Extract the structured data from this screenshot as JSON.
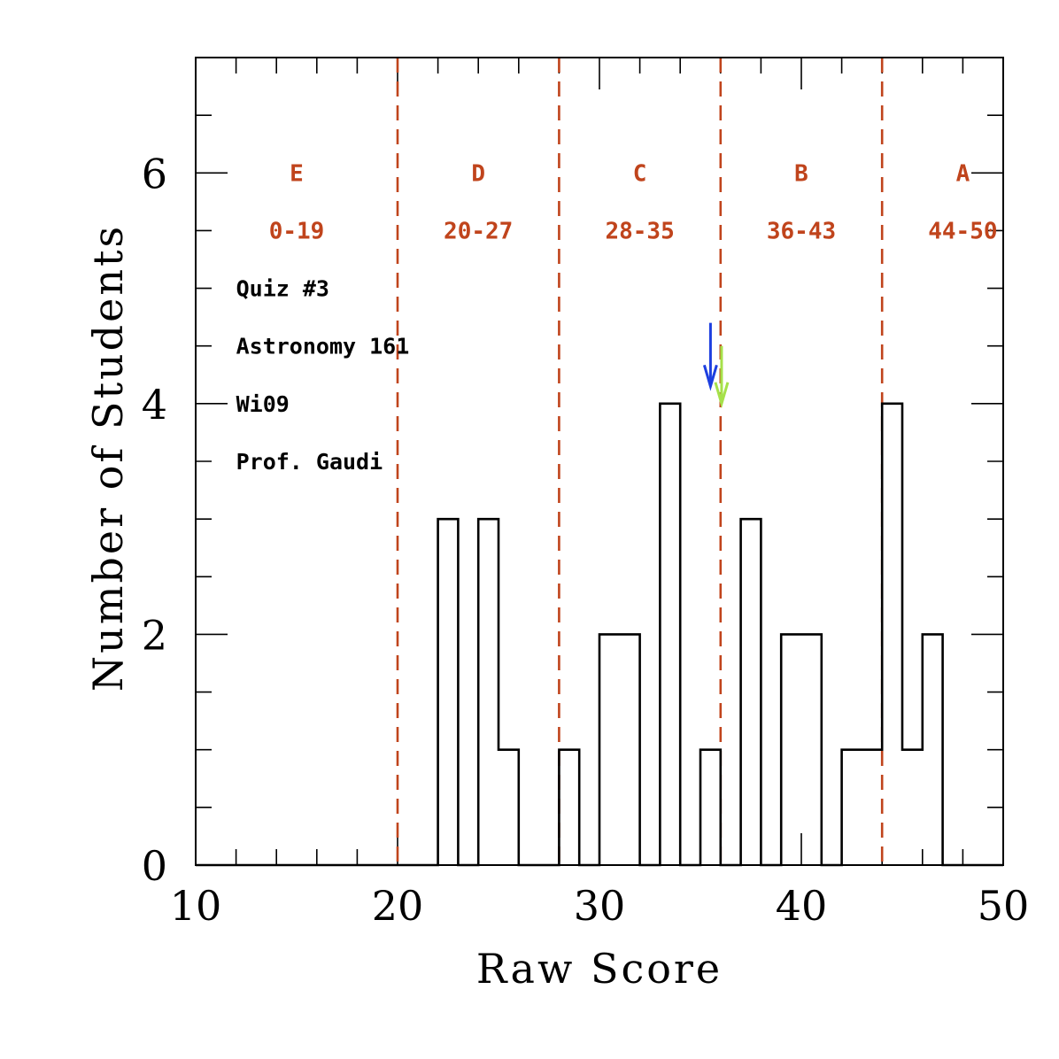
{
  "chart_data": {
    "type": "bar",
    "style": "step histogram",
    "xlabel": "Raw Score",
    "ylabel": "Number of Students",
    "xlim": [
      10,
      50
    ],
    "ylim": [
      0,
      7
    ],
    "x_major_ticks": [
      10,
      20,
      30,
      40,
      50
    ],
    "x_minor_step": 2,
    "y_major_ticks": [
      0,
      2,
      4,
      6
    ],
    "y_minor_step": 0.5,
    "bin_width": 1,
    "bin_starts": [
      10,
      11,
      12,
      13,
      14,
      15,
      16,
      17,
      18,
      19,
      20,
      21,
      22,
      23,
      24,
      25,
      26,
      27,
      28,
      29,
      30,
      31,
      32,
      33,
      34,
      35,
      36,
      37,
      38,
      39,
      40,
      41,
      42,
      43,
      44,
      45,
      46,
      47,
      48,
      49
    ],
    "counts": [
      0,
      0,
      0,
      0,
      0,
      0,
      0,
      0,
      0,
      0,
      0,
      0,
      3,
      0,
      3,
      1,
      0,
      0,
      1,
      0,
      2,
      2,
      0,
      4,
      0,
      1,
      0,
      3,
      0,
      2,
      2,
      0,
      1,
      1,
      4,
      1,
      2,
      0,
      0,
      0
    ],
    "grade_boundaries": [
      20,
      28,
      36,
      44
    ],
    "grades": [
      {
        "letter": "E",
        "range": "0-19",
        "x": 15
      },
      {
        "letter": "D",
        "range": "20-27",
        "x": 24
      },
      {
        "letter": "C",
        "range": "28-35",
        "x": 32
      },
      {
        "letter": "B",
        "range": "36-43",
        "x": 40
      },
      {
        "letter": "A",
        "range": "44-50",
        "x": 48
      }
    ],
    "grade_label_y": 6.0,
    "grade_range_y": 5.5,
    "markers": [
      {
        "name": "blue-arrow",
        "color": "#1d3fe0",
        "x": 35.5,
        "y_top": 4.7,
        "y_bottom": 4.15
      },
      {
        "name": "green-arrow",
        "color": "#a6e14a",
        "x": 36.05,
        "y_top": 4.5,
        "y_bottom": 4.0
      }
    ],
    "annotations": [
      "Quiz #3",
      "Astronomy 161",
      "Wi09",
      "Prof. Gaudi"
    ],
    "annotation_x": 12,
    "annotation_y": [
      5.0,
      4.5,
      4.0,
      3.5
    ],
    "colors": {
      "histogram": "#000000",
      "boundaries": "#c0441c",
      "grade_text": "#c0441c"
    }
  }
}
